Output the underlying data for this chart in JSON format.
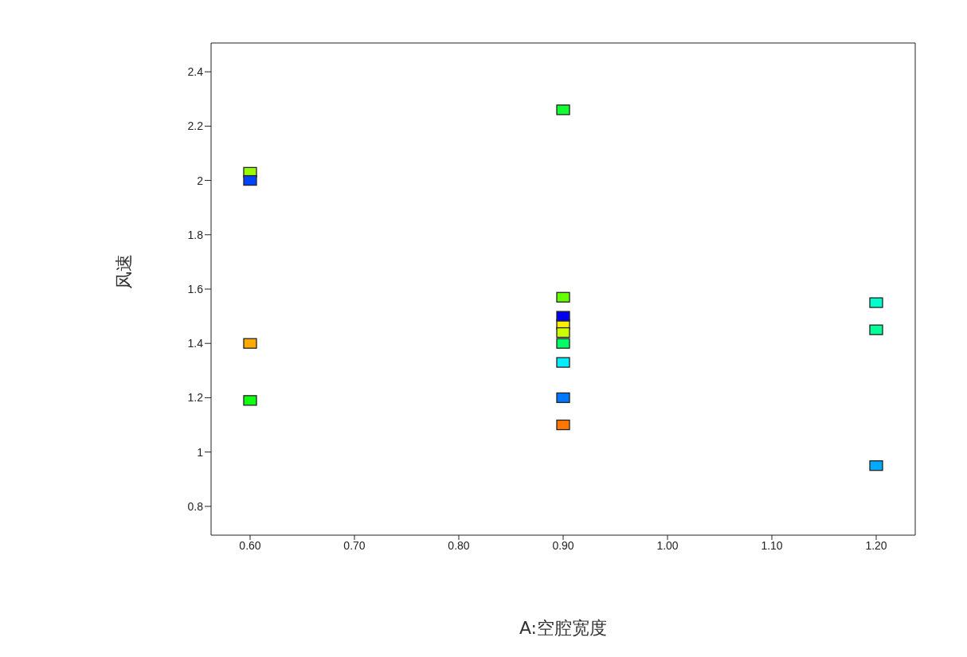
{
  "chart_data": {
    "type": "scatter",
    "xlabel": "A:空腔宽度",
    "ylabel": "风速",
    "x": [
      0.6,
      0.6,
      0.6,
      0.6,
      0.9,
      0.9,
      0.9,
      0.9,
      0.9,
      0.9,
      0.9,
      0.9,
      0.9,
      1.2,
      1.2,
      1.2
    ],
    "values": [
      2.03,
      2.0,
      1.4,
      1.19,
      2.26,
      1.57,
      1.47,
      1.5,
      1.44,
      1.4,
      1.33,
      1.2,
      1.1,
      1.55,
      1.45,
      0.95
    ],
    "colors": [
      "#99ff00",
      "#0044ff",
      "#ffaa00",
      "#11ff11",
      "#11ff33",
      "#66ff00",
      "#ffee00",
      "#0000ee",
      "#ccff00",
      "#00ff66",
      "#00eeff",
      "#0077ff",
      "#ff7700",
      "#00ffcc",
      "#00ff99",
      "#00aaff"
    ],
    "marker": "square",
    "grid": false,
    "xlim": [
      0.5626,
      1.2374
    ],
    "ylim": [
      0.694,
      2.506
    ],
    "xticks": [
      {
        "value": 0.6,
        "label": "0.60"
      },
      {
        "value": 0.7,
        "label": "0.70"
      },
      {
        "value": 0.8,
        "label": "0.80"
      },
      {
        "value": 0.9,
        "label": "0.90"
      },
      {
        "value": 1.0,
        "label": "1.00"
      },
      {
        "value": 1.1,
        "label": "1.10"
      },
      {
        "value": 1.2,
        "label": "1.20"
      }
    ],
    "yticks": [
      0.8,
      1,
      1.2,
      1.4,
      1.6,
      1.8,
      2,
      2.2,
      2.4
    ]
  }
}
